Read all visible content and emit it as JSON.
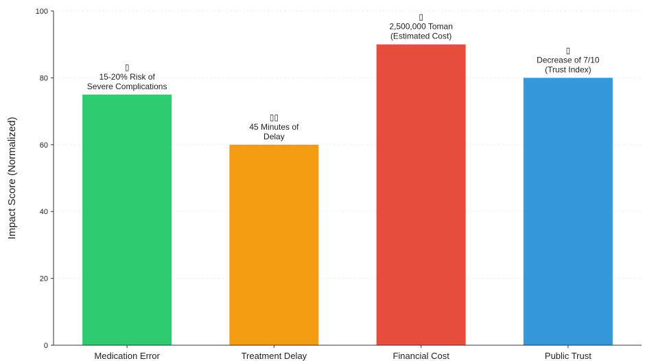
{
  "chart_data": {
    "type": "bar",
    "title": "",
    "xlabel": "",
    "ylabel": "Impact Score (Normalized)",
    "ylim": [
      0,
      100
    ],
    "yticks": [
      0,
      20,
      40,
      60,
      80,
      100
    ],
    "grid": true,
    "categories": [
      "Medication Error",
      "Treatment Delay",
      "Financial Cost",
      "Public Trust"
    ],
    "values": [
      75,
      60,
      90,
      80
    ],
    "colors": [
      "#2ecc71",
      "#f39c12",
      "#e74c3c",
      "#3498db"
    ],
    "annotations": [
      [
        "▯",
        "15-20% Risk of",
        "Severe Complications"
      ],
      [
        "▯▯",
        "45 Minutes of",
        "Delay"
      ],
      [
        "▯",
        "2,500,000 Toman",
        "(Estimated Cost)"
      ],
      [
        "▯",
        "Decrease of 7/10",
        "(Trust Index)"
      ]
    ]
  }
}
